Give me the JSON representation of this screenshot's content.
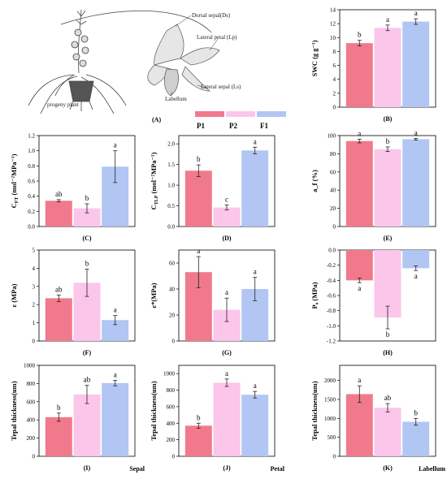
{
  "colors": {
    "P1": "#f07a8c",
    "P2": "#fbc6ea",
    "F1": "#b2c6f4"
  },
  "legend": [
    "P1",
    "P2",
    "F1"
  ],
  "illustration": {
    "label": "(A)",
    "callouts": [
      "Dorsal sepal(Ds)",
      "Lateral petal (Lp)",
      "Lateral sepal (Ls)",
      "Labellum",
      "progeny plant"
    ]
  },
  "chart_data": [
    {
      "id": "B",
      "type": "bar",
      "label": "(B)",
      "ylabel": "SWC (g g⁻¹)",
      "categories": [
        "P1",
        "P2",
        "F1"
      ],
      "values": [
        9.2,
        11.4,
        12.3
      ],
      "errors": [
        0.4,
        0.4,
        0.4
      ],
      "letters": [
        "b",
        "a",
        "a"
      ],
      "ylim": [
        0,
        14
      ],
      "yticks": [
        0,
        2,
        4,
        6,
        8,
        10,
        12,
        14
      ],
      "yticklabels": [
        "0",
        "2",
        "4",
        "6",
        "8",
        "10",
        "12",
        "14"
      ]
    },
    {
      "id": "C",
      "type": "bar",
      "label": "(C)",
      "ylabel": "C_FT (mol⁻²MPa⁻¹)",
      "categories": [
        "P1",
        "P2",
        "F1"
      ],
      "values": [
        0.34,
        0.24,
        0.79
      ],
      "errors": [
        0.015,
        0.06,
        0.21
      ],
      "letters": [
        "ab",
        "b",
        "a"
      ],
      "ylim": [
        0,
        1.2
      ],
      "yticks": [
        0,
        0.2,
        0.4,
        0.6,
        0.8,
        1.0,
        1.2
      ],
      "yticklabels": [
        "0.0",
        "0.2",
        "0.4",
        "0.6",
        "0.8",
        "1.0",
        "1.2"
      ]
    },
    {
      "id": "D",
      "type": "bar",
      "label": "(D)",
      "ylabel": "C_TLP (mol⁻²MPa⁻¹)",
      "categories": [
        "P1",
        "P2",
        "F1"
      ],
      "values": [
        1.35,
        0.46,
        1.84
      ],
      "errors": [
        0.14,
        0.06,
        0.08
      ],
      "letters": [
        "b",
        "c",
        "a"
      ],
      "ylim": [
        0,
        2.2
      ],
      "yticks": [
        0,
        0.5,
        1.0,
        1.5,
        2.0
      ],
      "yticklabels": [
        "0.0",
        "0.5",
        "1.0",
        "1.5",
        "2.0"
      ]
    },
    {
      "id": "E",
      "type": "bar",
      "label": "(E)",
      "ylabel": "a_f (%)",
      "categories": [
        "P1",
        "P2",
        "F1"
      ],
      "values": [
        94,
        85,
        96
      ],
      "errors": [
        2,
        2.5,
        1
      ],
      "letters": [
        "a",
        "b",
        "a"
      ],
      "ylim": [
        0,
        100
      ],
      "yticks": [
        0,
        20,
        40,
        60,
        80,
        100
      ],
      "yticklabels": [
        "0",
        "20",
        "40",
        "60",
        "80",
        "100"
      ]
    },
    {
      "id": "F",
      "type": "bar",
      "label": "(F)",
      "ylabel": "ε (MPa)",
      "categories": [
        "P1",
        "P2",
        "F1"
      ],
      "values": [
        2.35,
        3.2,
        1.15
      ],
      "errors": [
        0.18,
        0.75,
        0.25
      ],
      "letters": [
        "ab",
        "b",
        "a"
      ],
      "ylim": [
        0,
        5
      ],
      "yticks": [
        0,
        1,
        2,
        3,
        4,
        5
      ],
      "yticklabels": [
        "0",
        "1",
        "2",
        "3",
        "4",
        "5"
      ]
    },
    {
      "id": "G",
      "type": "bar",
      "label": "(G)",
      "ylabel": "ε*(MPa)",
      "categories": [
        "P1",
        "P2",
        "F1"
      ],
      "values": [
        53,
        24,
        40
      ],
      "errors": [
        12,
        9,
        9
      ],
      "letters": [
        "a",
        "a",
        "a"
      ],
      "ylim": [
        0,
        70
      ],
      "yticks": [
        0,
        20,
        40,
        60
      ],
      "yticklabels": [
        "0",
        "20",
        "40",
        "60"
      ]
    },
    {
      "id": "H",
      "type": "bar",
      "label": "(H)",
      "ylabel": "P₀ (MPa)",
      "categories": [
        "P1",
        "P2",
        "F1"
      ],
      "values": [
        -0.4,
        -0.89,
        -0.24
      ],
      "errors": [
        0.03,
        0.15,
        0.03
      ],
      "letters": [
        "a",
        "b",
        "a"
      ],
      "ylim": [
        -1.2,
        0
      ],
      "yticks": [
        -1.2,
        -1.0,
        -0.8,
        -0.6,
        -0.4,
        -0.2,
        0
      ],
      "yticklabels": [
        "-1.2",
        "-1.0",
        "-0.8",
        "-0.6",
        "-0.4",
        "-0.2",
        "0.0"
      ]
    },
    {
      "id": "I",
      "type": "bar",
      "label": "(I)",
      "sublabel": "Sepal",
      "ylabel": "Tepal thickness(um)",
      "categories": [
        "P1",
        "P2",
        "F1"
      ],
      "values": [
        430,
        680,
        805
      ],
      "errors": [
        45,
        100,
        30
      ],
      "letters": [
        "b",
        "ab",
        "a"
      ],
      "ylim": [
        0,
        1000
      ],
      "yticks": [
        0,
        200,
        400,
        600,
        800,
        1000
      ],
      "yticklabels": [
        "0",
        "200",
        "400",
        "600",
        "800",
        "1000"
      ]
    },
    {
      "id": "J",
      "type": "bar",
      "label": "(J)",
      "sublabel": "Petal",
      "ylabel": "Tepal thickness(um)",
      "categories": [
        "P1",
        "P2",
        "F1"
      ],
      "values": [
        370,
        890,
        745
      ],
      "errors": [
        30,
        45,
        40
      ],
      "letters": [
        "b",
        "a",
        "a"
      ],
      "ylim": [
        0,
        1100
      ],
      "yticks": [
        0,
        200,
        400,
        600,
        800,
        1000
      ],
      "yticklabels": [
        "0",
        "200",
        "400",
        "600",
        "800",
        "1000"
      ]
    },
    {
      "id": "K",
      "type": "bar",
      "label": "(K)",
      "sublabel": "Labellum",
      "ylabel": "Tepal thickness(um)",
      "categories": [
        "P1",
        "P2",
        "F1"
      ],
      "values": [
        1640,
        1280,
        910
      ],
      "errors": [
        220,
        110,
        90
      ],
      "letters": [
        "a",
        "ab",
        "b"
      ],
      "ylim": [
        0,
        2400
      ],
      "yticks": [
        0,
        500,
        1000,
        1500,
        2000
      ],
      "yticklabels": [
        "0",
        "500",
        "1000",
        "1500",
        "2000"
      ]
    }
  ]
}
